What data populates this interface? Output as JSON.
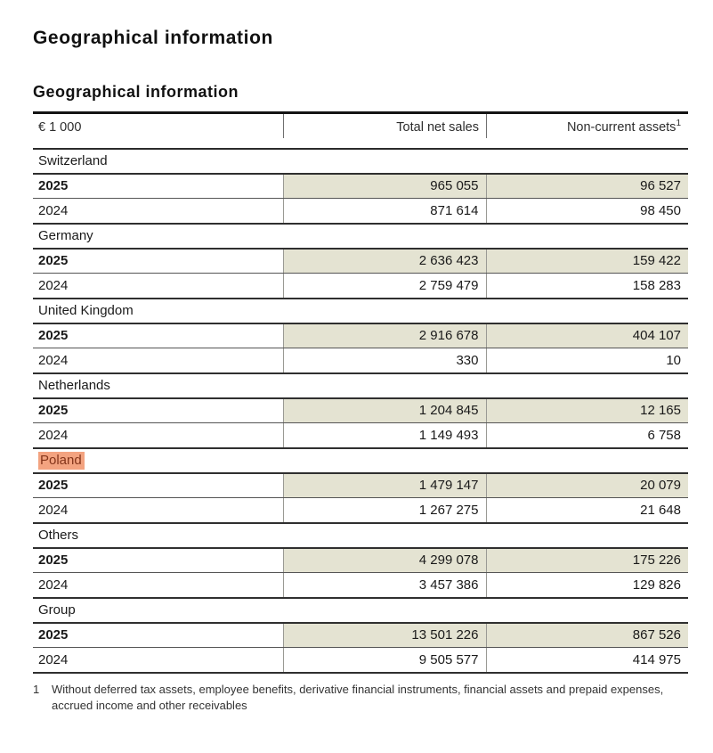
{
  "page": {
    "title": "Geographical information"
  },
  "table": {
    "title": "Geographical information",
    "unit_label": "€ 1 000",
    "col_net_sales": "Total net sales",
    "col_assets": "Non-current assets",
    "col_assets_footnote_ref": "1",
    "sections": [
      {
        "region": "Switzerland",
        "highlighted": false,
        "rows": [
          {
            "year": "2025",
            "net_sales": "965 055",
            "assets": "96 527"
          },
          {
            "year": "2024",
            "net_sales": "871 614",
            "assets": "98 450"
          }
        ]
      },
      {
        "region": "Germany",
        "highlighted": false,
        "rows": [
          {
            "year": "2025",
            "net_sales": "2 636 423",
            "assets": "159 422"
          },
          {
            "year": "2024",
            "net_sales": "2 759 479",
            "assets": "158 283"
          }
        ]
      },
      {
        "region": "United Kingdom",
        "highlighted": false,
        "rows": [
          {
            "year": "2025",
            "net_sales": "2 916 678",
            "assets": "404 107"
          },
          {
            "year": "2024",
            "net_sales": "330",
            "assets": "10"
          }
        ]
      },
      {
        "region": "Netherlands",
        "highlighted": false,
        "rows": [
          {
            "year": "2025",
            "net_sales": "1 204 845",
            "assets": "12 165"
          },
          {
            "year": "2024",
            "net_sales": "1 149 493",
            "assets": "6 758"
          }
        ]
      },
      {
        "region": "Poland",
        "highlighted": true,
        "rows": [
          {
            "year": "2025",
            "net_sales": "1 479 147",
            "assets": "20 079"
          },
          {
            "year": "2024",
            "net_sales": "1 267 275",
            "assets": "21 648"
          }
        ]
      },
      {
        "region": "Others",
        "highlighted": false,
        "rows": [
          {
            "year": "2025",
            "net_sales": "4 299 078",
            "assets": "175 226"
          },
          {
            "year": "2024",
            "net_sales": "3 457 386",
            "assets": "129 826"
          }
        ]
      },
      {
        "region": "Group",
        "highlighted": false,
        "rows": [
          {
            "year": "2025",
            "net_sales": "13 501 226",
            "assets": "867 526"
          },
          {
            "year": "2024",
            "net_sales": "9 505 577",
            "assets": "414 975"
          }
        ]
      }
    ],
    "footnote": {
      "marker": "1",
      "text": "Without deferred tax assets, employee benefits, derivative financial instruments, financial assets and prepaid expenses, accrued income and other receivables"
    }
  },
  "colors": {
    "accent_cell": "#e4e3d2",
    "highlight_bg": "#f3a380",
    "highlight_text": "#84351a",
    "divider": "#9a9a94"
  }
}
